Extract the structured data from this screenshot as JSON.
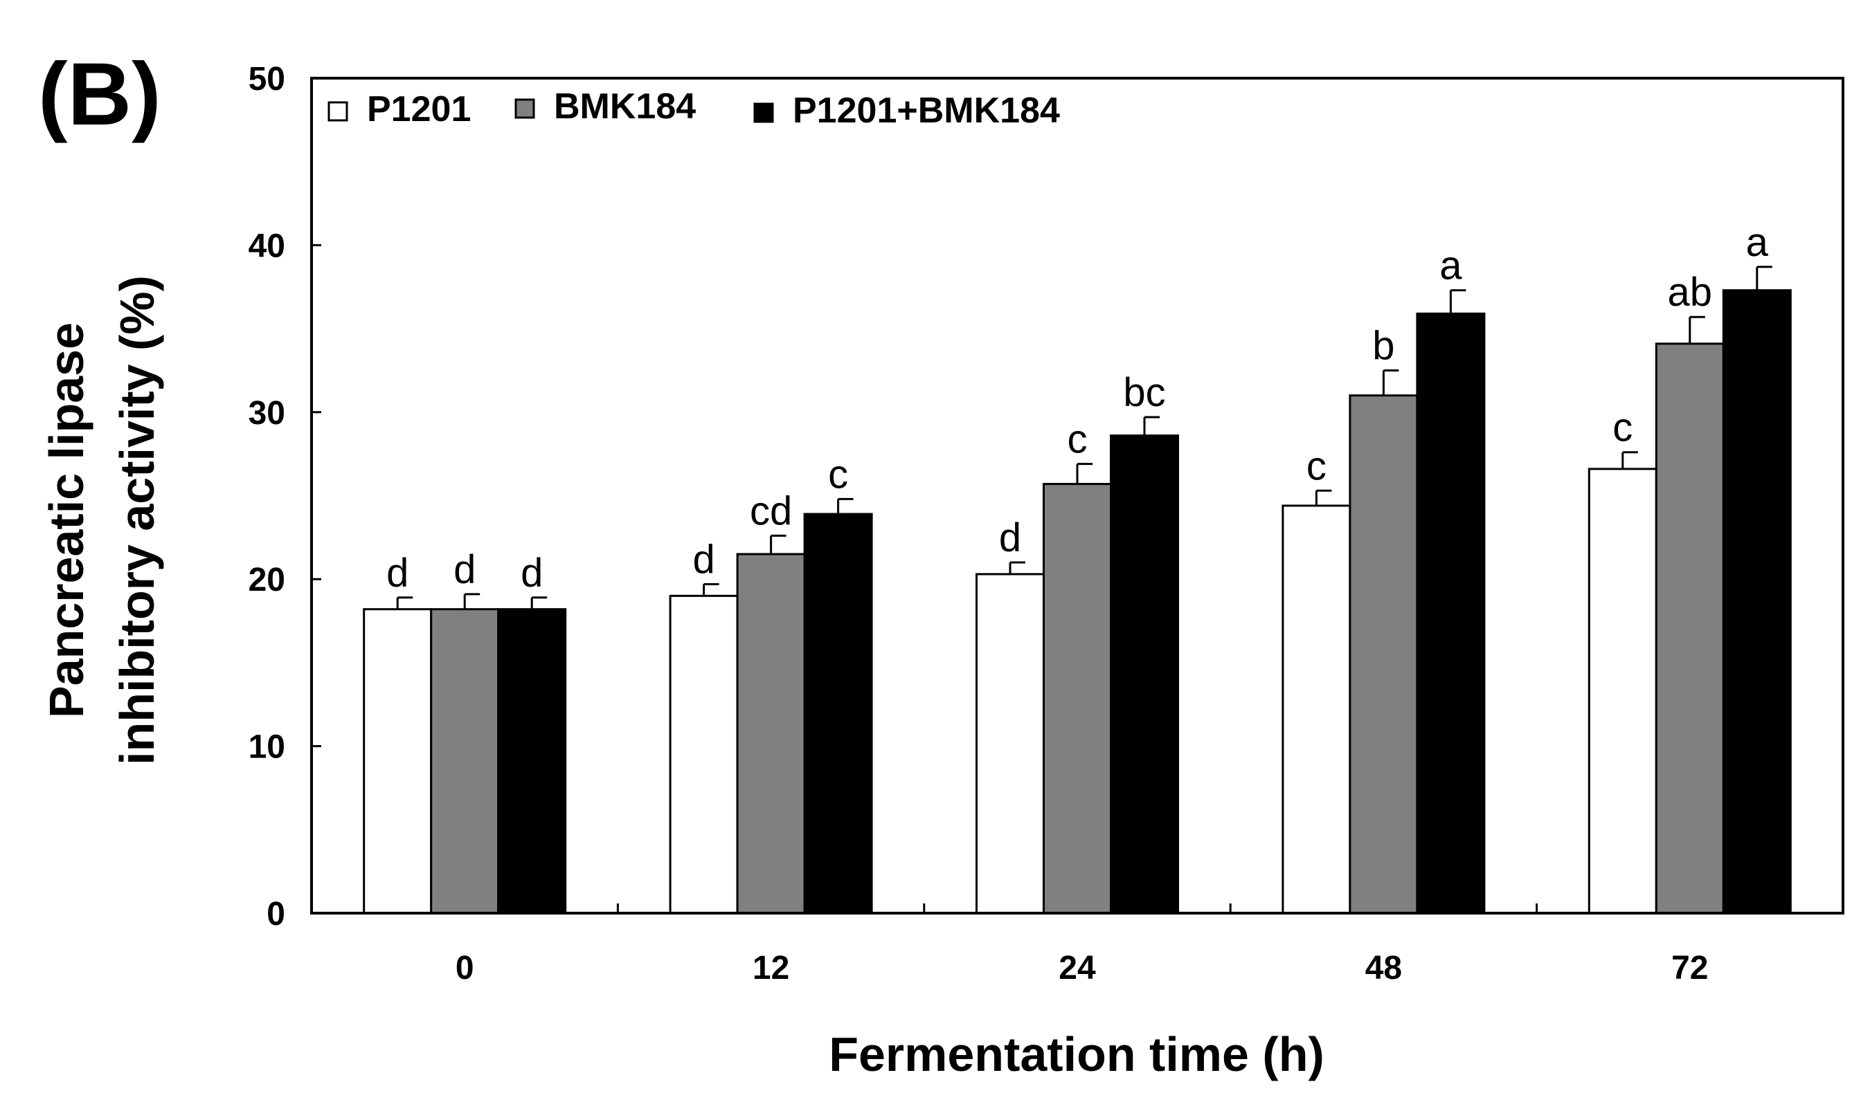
{
  "chart_data": {
    "type": "bar",
    "panel_label": "(B)",
    "xlabel": "Fermentation time (h)",
    "ylabel_line1": "Pancreatic lipase",
    "ylabel_line2": "inhibitory activity (%)",
    "ylim": [
      0,
      50
    ],
    "yticks": [
      "0",
      "10",
      "20",
      "30",
      "40",
      "50"
    ],
    "categories": [
      "0",
      "12",
      "24",
      "48",
      "72"
    ],
    "legend_position": "top-left",
    "series": [
      {
        "name": "P1201",
        "color": "#ffffff",
        "values": [
          18.2,
          19.0,
          20.3,
          24.4,
          26.6
        ],
        "errors": [
          0.7,
          0.7,
          0.7,
          0.9,
          1.0
        ],
        "letters": [
          "d",
          "d",
          "d",
          "c",
          "c"
        ]
      },
      {
        "name": "BMK184",
        "color": "#808080",
        "values": [
          18.2,
          21.5,
          25.7,
          31.0,
          34.1
        ],
        "errors": [
          0.9,
          1.1,
          1.2,
          1.5,
          1.6
        ],
        "letters": [
          "d",
          "cd",
          "c",
          "b",
          "ab"
        ]
      },
      {
        "name": "P1201+BMK184",
        "color": "#000000",
        "values": [
          18.2,
          23.9,
          28.6,
          35.9,
          37.3
        ],
        "errors": [
          0.7,
          0.9,
          1.1,
          1.4,
          1.4
        ],
        "letters": [
          "d",
          "c",
          "bc",
          "a",
          "a"
        ]
      }
    ]
  }
}
